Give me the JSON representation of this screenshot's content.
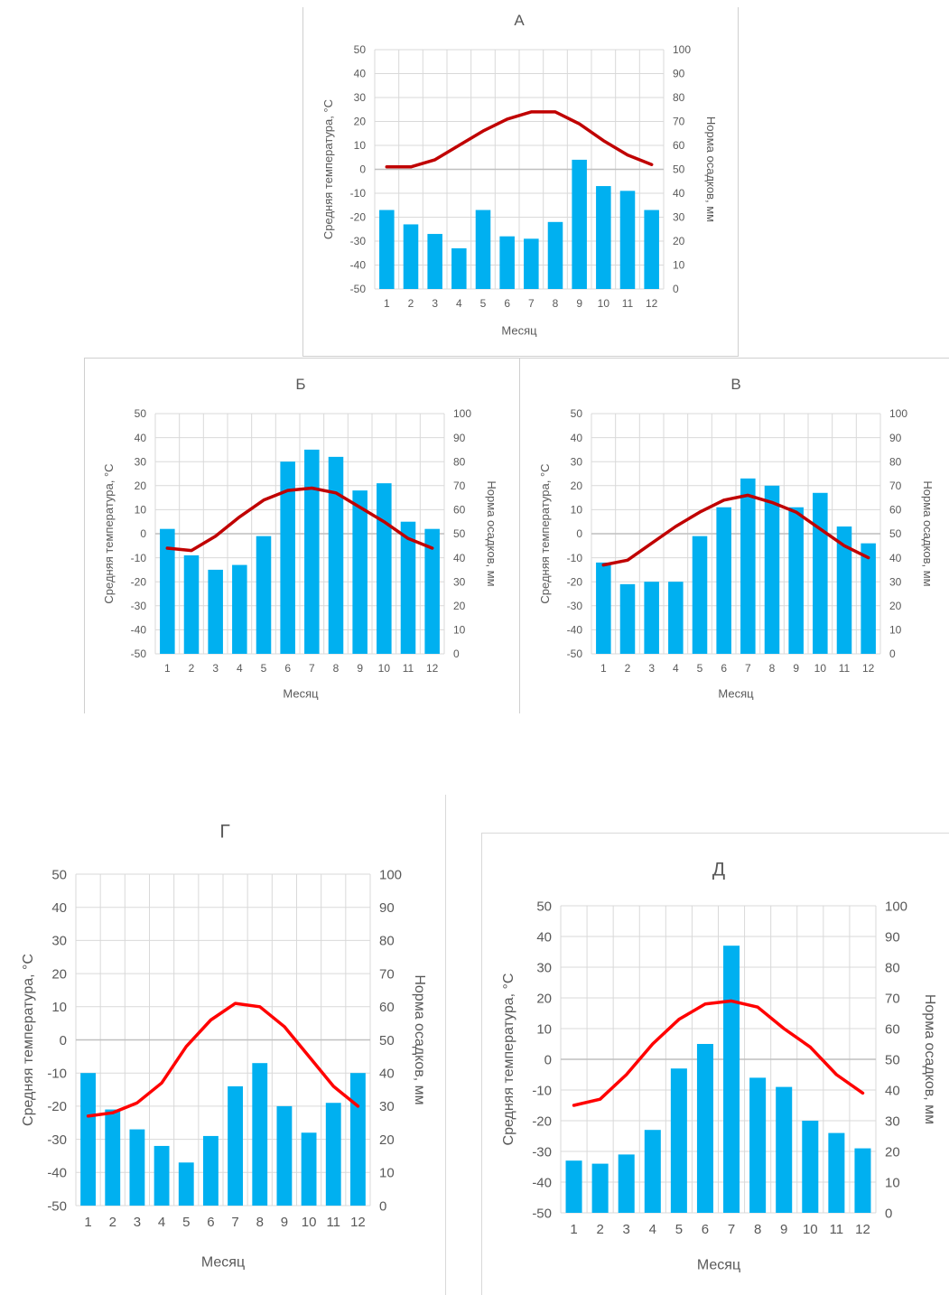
{
  "colors": {
    "bar": "#00B0F0",
    "line": "#FF0000",
    "line_dark": "#C00000",
    "grid": "#D9D9D9",
    "text": "#595959"
  },
  "chart_data": [
    {
      "type": "bar",
      "title": "А",
      "categories": [
        "1",
        "2",
        "3",
        "4",
        "5",
        "6",
        "7",
        "8",
        "9",
        "10",
        "11",
        "12"
      ],
      "xlabel": "Месяц",
      "ylabel": "Средняя температура, °С",
      "y2label": "Норма осадков, мм",
      "ylim": [
        -50,
        50
      ],
      "y2lim": [
        0,
        100
      ],
      "yticks": [
        "50",
        "40",
        "30",
        "20",
        "10",
        "0",
        "-10",
        "-20",
        "-30",
        "-40",
        "-50"
      ],
      "y2ticks": [
        "100",
        "90",
        "80",
        "70",
        "60",
        "50",
        "40",
        "30",
        "20",
        "10",
        "0"
      ],
      "series": [
        {
          "type": "bar",
          "axis": "right",
          "values": [
            33,
            27,
            23,
            17,
            33,
            22,
            21,
            28,
            54,
            43,
            41,
            33
          ]
        },
        {
          "type": "line",
          "axis": "left",
          "values": [
            1,
            1,
            4,
            10,
            16,
            21,
            24,
            24,
            19,
            12,
            6,
            2
          ]
        }
      ],
      "line_color": "#C00000"
    },
    {
      "type": "bar",
      "title": "Б",
      "categories": [
        "1",
        "2",
        "3",
        "4",
        "5",
        "6",
        "7",
        "8",
        "9",
        "10",
        "11",
        "12"
      ],
      "xlabel": "Месяц",
      "ylabel": "Средняя температура, °С",
      "y2label": "Норма осадков, мм",
      "ylim": [
        -50,
        50
      ],
      "y2lim": [
        0,
        100
      ],
      "yticks": [
        "50",
        "40",
        "30",
        "20",
        "10",
        "0",
        "-10",
        "-20",
        "-30",
        "-40",
        "-50"
      ],
      "y2ticks": [
        "100",
        "90",
        "80",
        "70",
        "60",
        "50",
        "40",
        "30",
        "20",
        "10",
        "0"
      ],
      "series": [
        {
          "type": "bar",
          "axis": "right",
          "values": [
            52,
            41,
            35,
            37,
            49,
            80,
            85,
            82,
            68,
            71,
            55,
            52
          ]
        },
        {
          "type": "line",
          "axis": "left",
          "values": [
            -6,
            -7,
            -1,
            7,
            14,
            18,
            19,
            17,
            11,
            5,
            -2,
            -6
          ]
        }
      ],
      "line_color": "#C00000"
    },
    {
      "type": "bar",
      "title": "В",
      "categories": [
        "1",
        "2",
        "3",
        "4",
        "5",
        "6",
        "7",
        "8",
        "9",
        "10",
        "11",
        "12"
      ],
      "xlabel": "Месяц",
      "ylabel": "Средняя температура, °С",
      "y2label": "Норма осадков, мм",
      "ylim": [
        -50,
        50
      ],
      "y2lim": [
        0,
        100
      ],
      "yticks": [
        "50",
        "40",
        "30",
        "20",
        "10",
        "0",
        "-10",
        "-20",
        "-30",
        "-40",
        "-50"
      ],
      "y2ticks": [
        "100",
        "90",
        "80",
        "70",
        "60",
        "50",
        "40",
        "30",
        "20",
        "10",
        "0"
      ],
      "series": [
        {
          "type": "bar",
          "axis": "right",
          "values": [
            38,
            29,
            30,
            30,
            49,
            61,
            73,
            70,
            61,
            67,
            53,
            46
          ]
        },
        {
          "type": "line",
          "axis": "left",
          "values": [
            -13,
            -11,
            -4,
            3,
            9,
            14,
            16,
            13,
            9,
            2,
            -5,
            -10
          ]
        }
      ],
      "line_color": "#C00000"
    },
    {
      "type": "bar",
      "title": "Г",
      "categories": [
        "1",
        "2",
        "3",
        "4",
        "5",
        "6",
        "7",
        "8",
        "9",
        "10",
        "11",
        "12"
      ],
      "xlabel": "Месяц",
      "ylabel": "Средняя температура, °С",
      "y2label": "Норма осадков, мм",
      "ylim": [
        -50,
        50
      ],
      "y2lim": [
        0,
        100
      ],
      "yticks": [
        "50",
        "40",
        "30",
        "20",
        "10",
        "0",
        "-10",
        "-20",
        "-30",
        "-40",
        "-50"
      ],
      "y2ticks": [
        "100",
        "90",
        "80",
        "70",
        "60",
        "50",
        "40",
        "30",
        "20",
        "10",
        "0"
      ],
      "series": [
        {
          "type": "bar",
          "axis": "right",
          "values": [
            40,
            29,
            23,
            18,
            13,
            21,
            36,
            43,
            30,
            22,
            31,
            40
          ]
        },
        {
          "type": "line",
          "axis": "left",
          "values": [
            -23,
            -22,
            -19,
            -13,
            -2,
            6,
            11,
            10,
            4,
            -5,
            -14,
            -20
          ]
        }
      ],
      "line_color": "#FF0000"
    },
    {
      "type": "bar",
      "title": "Д",
      "categories": [
        "1",
        "2",
        "3",
        "4",
        "5",
        "6",
        "7",
        "8",
        "9",
        "10",
        "11",
        "12"
      ],
      "xlabel": "Месяц",
      "ylabel": "Средняя температура, °С",
      "y2label": "Норма осадков, мм",
      "ylim": [
        -50,
        50
      ],
      "y2lim": [
        0,
        100
      ],
      "yticks": [
        "50",
        "40",
        "30",
        "20",
        "10",
        "0",
        "-10",
        "-20",
        "-30",
        "-40",
        "-50"
      ],
      "y2ticks": [
        "100",
        "90",
        "80",
        "70",
        "60",
        "50",
        "40",
        "30",
        "20",
        "10",
        "0"
      ],
      "series": [
        {
          "type": "bar",
          "axis": "right",
          "values": [
            17,
            16,
            19,
            27,
            47,
            55,
            87,
            44,
            41,
            30,
            26,
            21
          ]
        },
        {
          "type": "line",
          "axis": "left",
          "values": [
            -15,
            -13,
            -5,
            5,
            13,
            18,
            19,
            17,
            10,
            4,
            -5,
            -11
          ]
        }
      ],
      "line_color": "#FF0000"
    }
  ]
}
